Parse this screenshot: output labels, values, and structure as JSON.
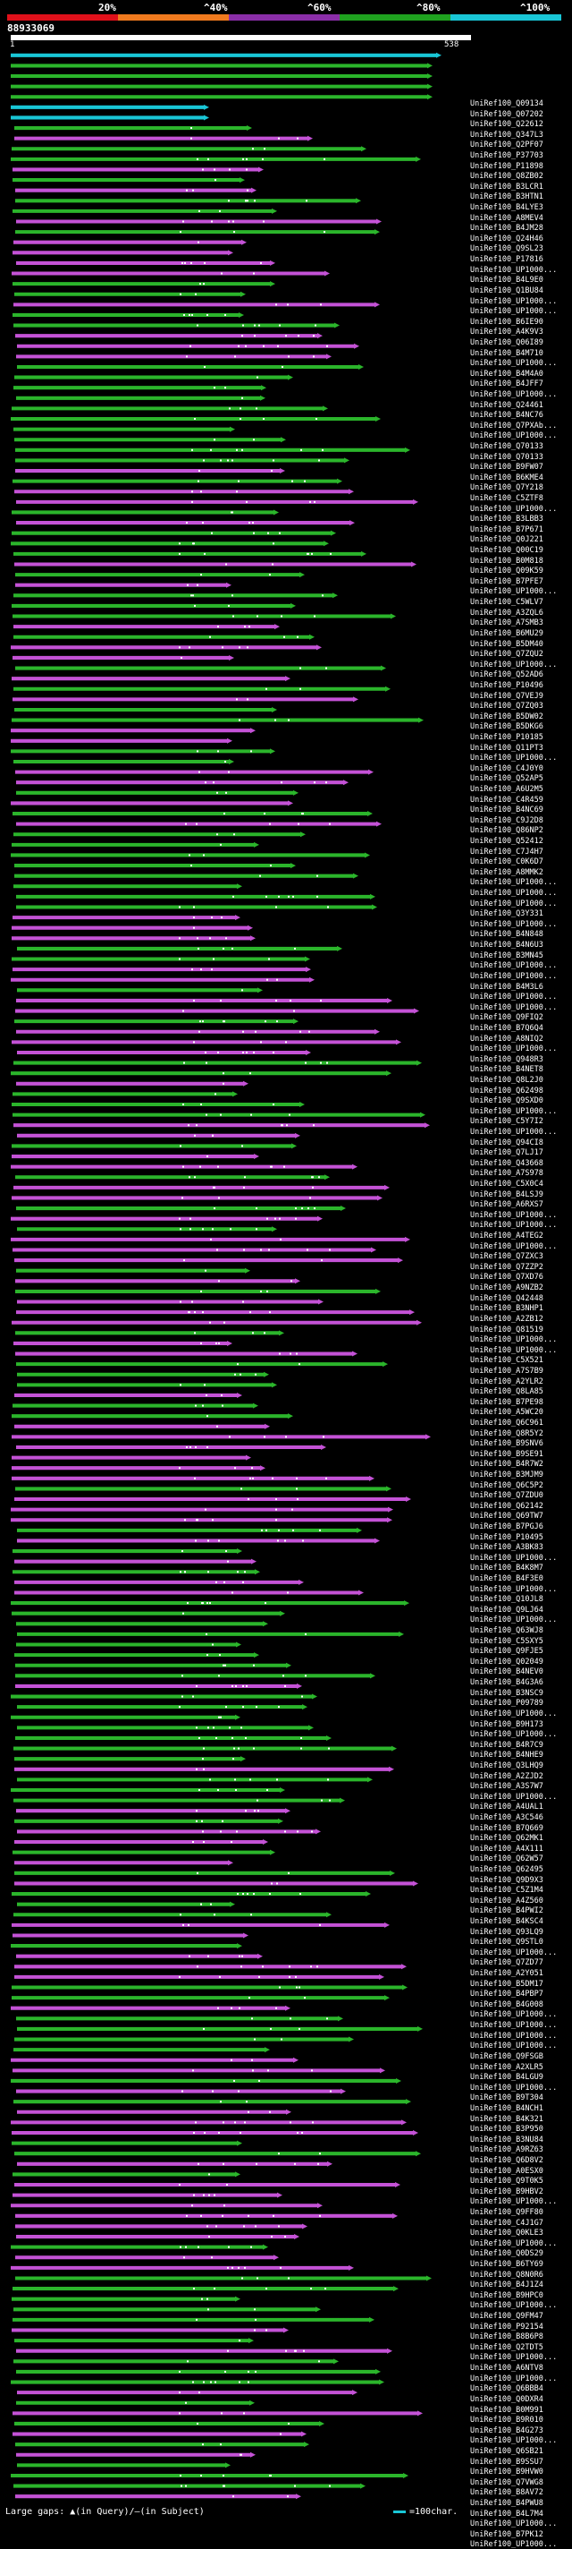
{
  "header": {
    "percent_labels": [
      "20%",
      "^40%",
      "^60%",
      "^80%",
      "^100%"
    ],
    "percent_colors": [
      "#e0101a",
      "#f07a1e",
      "#8b2ea8",
      "#1fa21f",
      "#19c6d6"
    ],
    "query_id": "88933069",
    "scale_start": "1",
    "scale_end": "538"
  },
  "colors": {
    "cyan": "#19c6d6",
    "green": "#2bb52b",
    "magenta": "#c452d6",
    "gap_marker": "#ffffff"
  },
  "subjects": [
    "UniRef100_Q09134",
    "UniRef100_Q07202",
    "UniRef100_Q22612",
    "UniRef100_Q347L3",
    "UniRef100_Q2PF07",
    "UniRef100_P37703",
    "UniRef100_P11898",
    "UniRef100_Q8ZB02",
    "UniRef100_B3LCR1",
    "UniRef100_B3HTN1",
    "UniRef100_B4LYE3",
    "UniRef100_A8MEV4",
    "UniRef100_B4JM28",
    "UniRef100_Q24H46",
    "UniRef100_Q9SL23",
    "UniRef100_P17816",
    "UniRef100_UP1000...",
    "UniRef100_B4L9E0",
    "UniRef100_Q1BU84",
    "UniRef100_UP1000...",
    "UniRef100_UP1000...",
    "UniRef100_B6IE90",
    "UniRef100_A4K9V3",
    "UniRef100_Q06I89",
    "UniRef100_B4M710",
    "UniRef100_UP1000...",
    "UniRef100_B4M4A0",
    "UniRef100_B4JFF7",
    "UniRef100_UP1000...",
    "UniRef100_Q24461",
    "UniRef100_B4NC76",
    "UniRef100_Q7PXAb...",
    "UniRef100_UP1000...",
    "UniRef100_Q70133",
    "UniRef100_Q70133",
    "UniRef100_B9FW07",
    "UniRef100_B6KME4",
    "UniRef100_Q7Y218",
    "UniRef100_C5ZTF8",
    "UniRef100_UP1000...",
    "UniRef100_B3LBB3",
    "UniRef100_B7P671",
    "UniRef100_Q0J221",
    "UniRef100_Q00C19",
    "UniRef100_B0M818",
    "UniRef100_Q09K59",
    "UniRef100_B7PFE7",
    "UniRef100_UP1000...",
    "UniRef100_C5WLV7",
    "UniRef100_A3ZQL6",
    "UniRef100_A7SMB3",
    "UniRef100_B6MU29",
    "UniRef100_B5DM40",
    "UniRef100_Q7ZQU2",
    "UniRef100_UP1000...",
    "UniRef100_Q52AD6",
    "UniRef100_P10496",
    "UniRef100_Q7VEJ9",
    "UniRef100_Q7ZQ03",
    "UniRef100_B5DW02",
    "UniRef100_B5DKG6",
    "UniRef100_P10185",
    "UniRef100_Q11PT3",
    "UniRef100_UP1000...",
    "UniRef100_C4J0Y0",
    "UniRef100_Q52AP5",
    "UniRef100_A6U2M5",
    "UniRef100_C4R459",
    "UniRef100_B4NC69",
    "UniRef100_C9J2D8",
    "UniRef100_Q86NP2",
    "UniRef100_Q52412",
    "UniRef100_C7J4H7",
    "UniRef100_C0K6D7",
    "UniRef100_A8MMK2",
    "UniRef100_UP1000...",
    "UniRef100_UP1000...",
    "UniRef100_UP1000...",
    "UniRef100_Q3Y331",
    "UniRef100_UP1000...",
    "UniRef100_B4N848",
    "UniRef100_B4N6U3",
    "UniRef100_B3MN45",
    "UniRef100_UP1000...",
    "UniRef100_UP1000...",
    "UniRef100_B4M3L6",
    "UniRef100_UP1000...",
    "UniRef100_UP1000...",
    "UniRef100_Q9FIQ2",
    "UniRef100_B7Q6Q4",
    "UniRef100_A8NIQ2",
    "UniRef100_UP1000...",
    "UniRef100_Q948R3",
    "UniRef100_B4NET8",
    "UniRef100_Q8L2J0",
    "UniRef100_Q62498",
    "UniRef100_Q9SXD0",
    "UniRef100_UP1000...",
    "UniRef100_C5Y7I2",
    "UniRef100_UP1000...",
    "UniRef100_Q94CI8",
    "UniRef100_Q7LJ17",
    "UniRef100_Q43668",
    "UniRef100_A7S978",
    "UniRef100_C5X0C4",
    "UniRef100_B4LSJ9",
    "UniRef100_A6RXS7",
    "UniRef100_UP1000...",
    "UniRef100_UP1000...",
    "UniRef100_A4TEG2",
    "UniRef100_UP1000...",
    "UniRef100_Q7ZXC3",
    "UniRef100_Q7ZZP2",
    "UniRef100_Q7XD76",
    "UniRef100_A9NZB2",
    "UniRef100_Q42448",
    "UniRef100_B3NHP1",
    "UniRef100_A2ZB12",
    "UniRef100_Q81519",
    "UniRef100_UP1000...",
    "UniRef100_UP1000...",
    "UniRef100_C5X521",
    "UniRef100_A7S7B9",
    "UniRef100_A2YLR2",
    "UniRef100_Q8LA85",
    "UniRef100_B7PE98",
    "UniRef100_A5WC20",
    "UniRef100_Q6C961",
    "UniRef100_Q8R5Y2",
    "UniRef100_B9SNV6",
    "UniRef100_B9SE91",
    "UniRef100_B4R7W2",
    "UniRef100_B3MJM9",
    "UniRef100_Q6C5P2",
    "UniRef100_Q7ZDU0",
    "UniRef100_Q62142",
    "UniRef100_Q69TW7",
    "UniRef100_B7PGJ6",
    "UniRef100_P10495",
    "UniRef100_A3BK83",
    "UniRef100_UP1000...",
    "UniRef100_B4K8M7",
    "UniRef100_B4F3E0",
    "UniRef100_UP1000...",
    "UniRef100_Q10JL8",
    "UniRef100_Q9LJ64",
    "UniRef100_UP1000...",
    "UniRef100_Q63WJ8",
    "UniRef100_C5SXY5",
    "UniRef100_Q9FJE5",
    "UniRef100_Q02049",
    "UniRef100_B4NEV0",
    "UniRef100_B4G3A6",
    "UniRef100_B3NSC9",
    "UniRef100_P09789",
    "UniRef100_UP1000...",
    "UniRef100_B9H173",
    "UniRef100_UP1000...",
    "UniRef100_B4R7C9",
    "UniRef100_B4NHE9",
    "UniRef100_Q3LHQ9",
    "UniRef100_A2ZJD2",
    "UniRef100_A3S7W7",
    "UniRef100_UP1000...",
    "UniRef100_A4UAL1",
    "UniRef100_A3C546",
    "UniRef100_B7Q669",
    "UniRef100_Q62MK1",
    "UniRef100_A4X111",
    "UniRef100_Q62W57",
    "UniRef100_Q62495",
    "UniRef100_Q9D9X3",
    "UniRef100_C5Z1M4",
    "UniRef100_A4Z560",
    "UniRef100_B4PWI2",
    "UniRef100_B4KSC4",
    "UniRef100_Q93LQ9",
    "UniRef100_Q9STL0",
    "UniRef100_UP1000...",
    "UniRef100_Q7ZD77",
    "UniRef100_A2Y051",
    "UniRef100_B5DM17",
    "UniRef100_B4PBP7",
    "UniRef100_B4G008",
    "UniRef100_UP1000...",
    "UniRef100_UP1000...",
    "UniRef100_UP1000...",
    "UniRef100_UP1000...",
    "UniRef100_Q9FSGB",
    "UniRef100_A2XLR5",
    "UniRef100_B4LGU9",
    "UniRef100_UP1000...",
    "UniRef100_B9T304",
    "UniRef100_B4NCH1",
    "UniRef100_B4K321",
    "UniRef100_B3P950",
    "UniRef100_B3NU84",
    "UniRef100_A9RZ63",
    "UniRef100_Q6D8V2",
    "UniRef100_A0ESX0",
    "UniRef100_Q9T0K5",
    "UniRef100_B9HBV2",
    "UniRef100_UP1000...",
    "UniRef100_Q9FF80",
    "UniRef100_C4J1G7",
    "UniRef100_Q0KLE3",
    "UniRef100_UP1000...",
    "UniRef100_Q0DS29",
    "UniRef100_B6TY69",
    "UniRef100_Q8N0R6",
    "UniRef100_B4J1Z4",
    "UniRef100_B9HPC0",
    "UniRef100_UP1000...",
    "UniRef100_Q9FM47",
    "UniRef100_P92154",
    "UniRef100_B8B6P8",
    "UniRef100_Q2TDT5",
    "UniRef100_UP1000...",
    "UniRef100_A6NTV8",
    "UniRef100_UP1000...",
    "UniRef100_Q6BBB4",
    "UniRef100_Q0DXR4",
    "UniRef100_B0M991",
    "UniRef100_B9R010",
    "UniRef100_B4G273",
    "UniRef100_UP1000...",
    "UniRef100_Q6SB21",
    "UniRef100_B9SSU7",
    "UniRef100_B9HVW0",
    "UniRef100_Q7VWG8",
    "UniRef100_B8AV72",
    "UniRef100_B4PWU8",
    "UniRef100_B4L7M4",
    "UniRef100_UP1000...",
    "UniRef100_B7PK12",
    "UniRef100_UP1000..."
  ],
  "legend": {
    "text": "Large gaps: ▲(in Query)/—(in Subject)",
    "scale_text": "=100char."
  }
}
